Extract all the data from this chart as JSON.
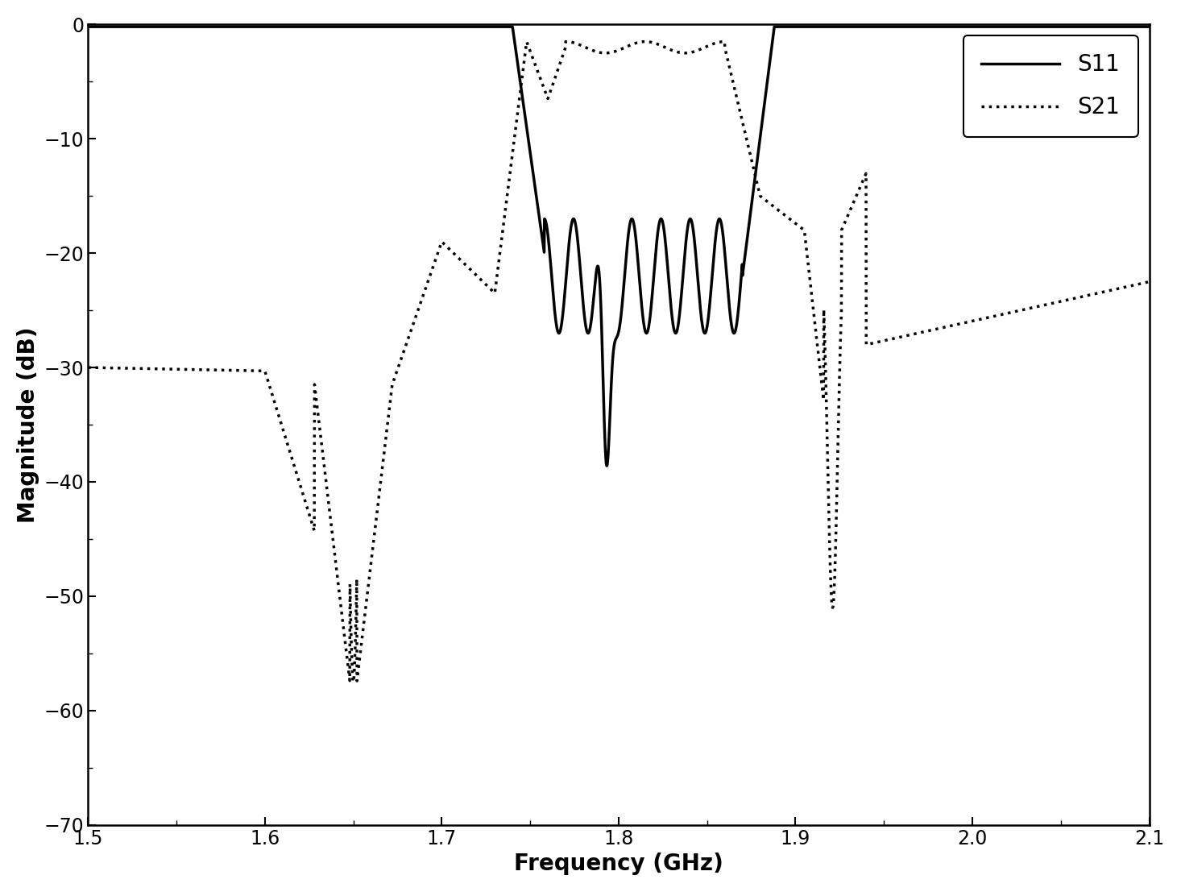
{
  "xlabel": "Frequency (GHz)",
  "ylabel": "Magnitude (dB)",
  "xlim": [
    1.5,
    2.1
  ],
  "ylim": [
    -70,
    0
  ],
  "xticks": [
    1.5,
    1.6,
    1.7,
    1.8,
    1.9,
    2.0,
    2.1
  ],
  "yticks": [
    0,
    -10,
    -20,
    -30,
    -40,
    -50,
    -60,
    -70
  ],
  "legend_labels": [
    "S11",
    "S21"
  ],
  "legend_loc": "upper right",
  "background_color": "#ffffff",
  "line_color": "#000000",
  "title": ""
}
